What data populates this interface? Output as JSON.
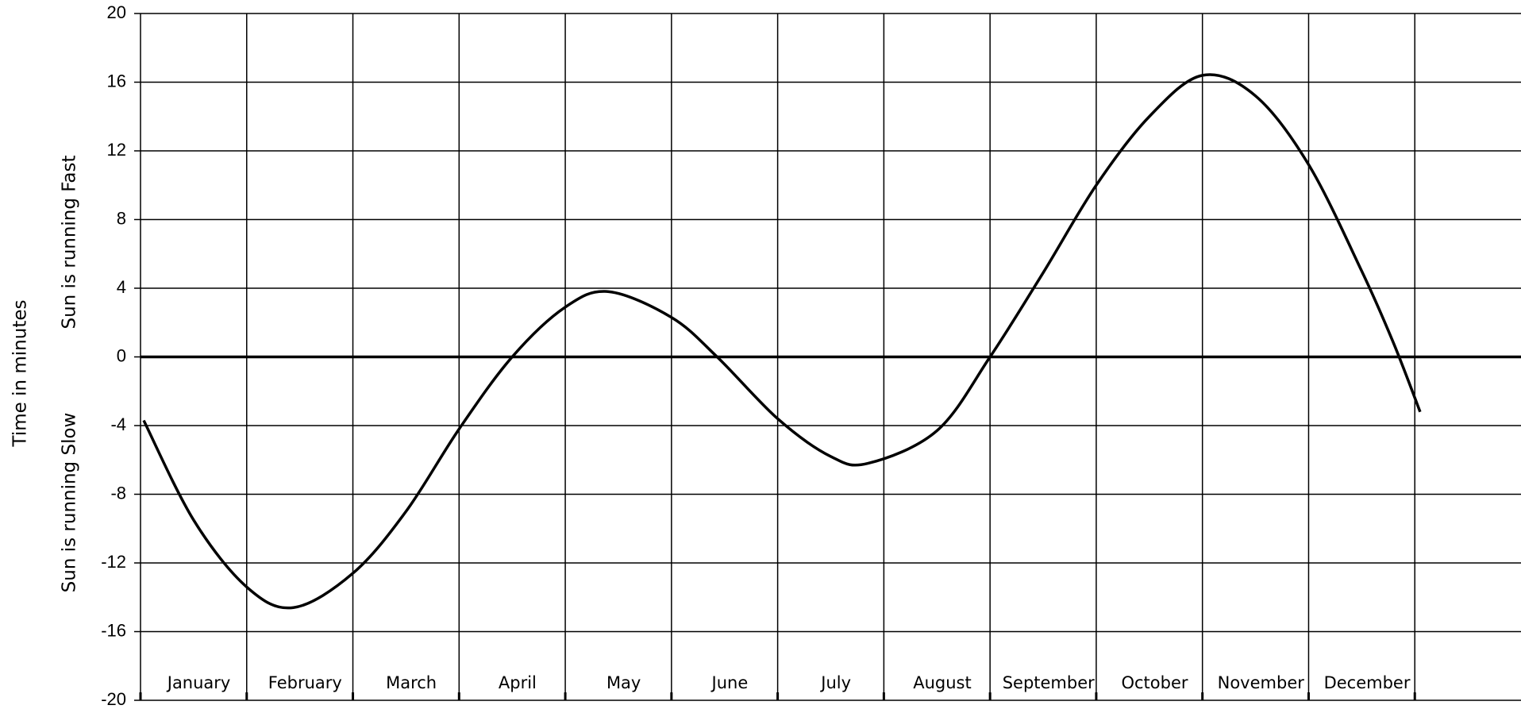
{
  "chart_data": {
    "type": "line",
    "y_label": "Time in minutes",
    "y_label_upper": "Sun is running Fast",
    "y_label_lower": "Sun is running Slow",
    "categories": [
      "January",
      "February",
      "March",
      "April",
      "May",
      "June",
      "July",
      "August",
      "September",
      "October",
      "November",
      "December"
    ],
    "x": [
      0.03,
      0.5,
      1.0,
      1.44,
      2.0,
      2.5,
      3.0,
      3.5,
      4.0,
      4.41,
      5.0,
      5.43,
      6.0,
      6.5,
      6.85,
      7.5,
      8.0,
      8.5,
      9.0,
      9.5,
      10.0,
      10.5,
      11.0,
      11.5,
      11.8,
      12.05
    ],
    "xlim": [
      0,
      13
    ],
    "series": [
      {
        "color": "#000000",
        "values": [
          -3.7,
          -9.5,
          -13.4,
          -14.6,
          -12.6,
          -9.0,
          -4.2,
          0.0,
          2.9,
          3.8,
          2.3,
          0.0,
          -3.6,
          -5.8,
          -6.2,
          -4.3,
          0.0,
          4.9,
          10.0,
          14.0,
          16.4,
          15.2,
          11.2,
          5.0,
          0.8,
          -3.2
        ]
      }
    ],
    "ylim": [
      -20,
      20
    ],
    "yticks": [
      -20,
      -16,
      -12,
      -8,
      -4,
      0,
      4,
      8,
      12,
      16,
      20
    ],
    "grid": true
  }
}
